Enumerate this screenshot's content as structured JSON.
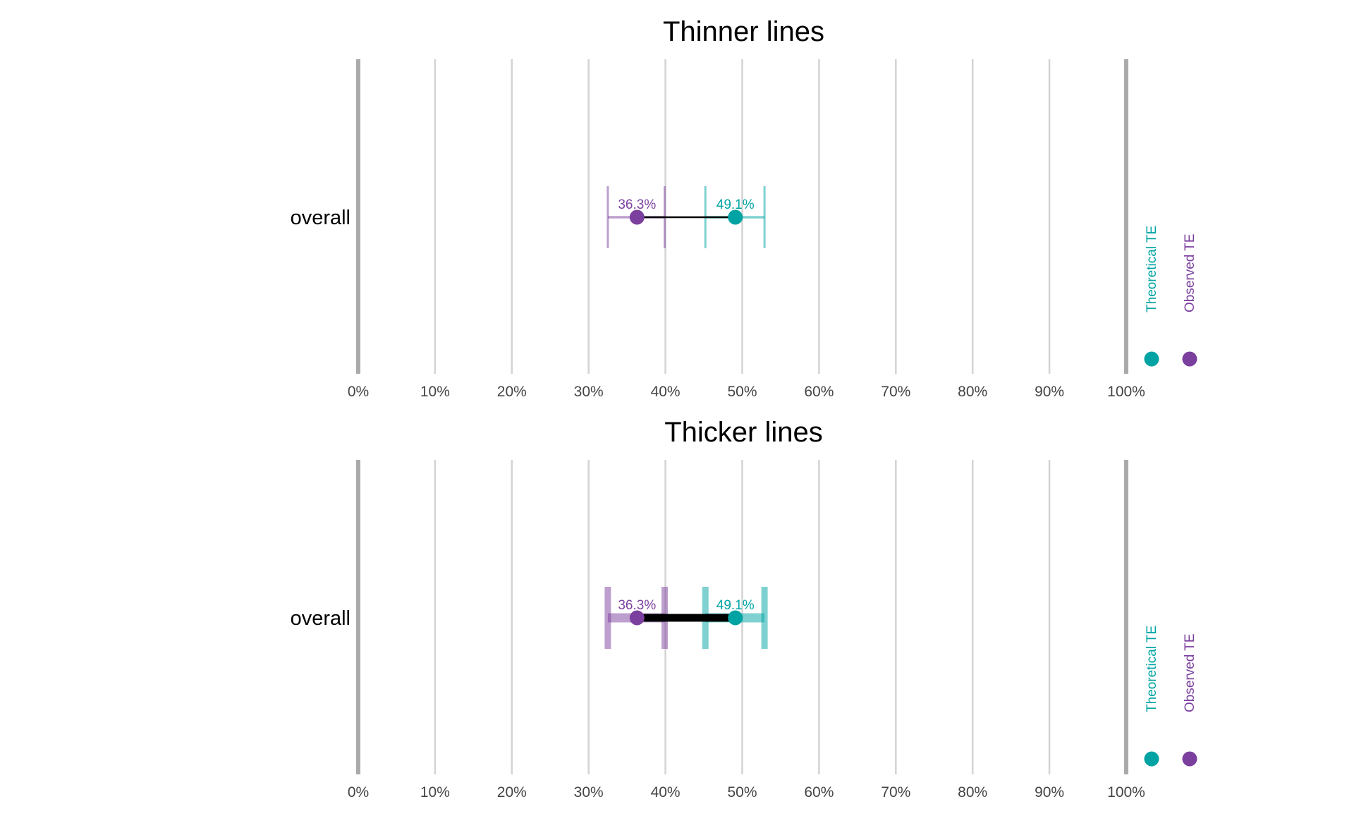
{
  "colors": {
    "theoretical": "#00A3A3",
    "observed": "#7B3F9E",
    "connector": "#000000",
    "gridline": "#d3d3d3",
    "boundary": "#aaaaaa"
  },
  "chart_data": [
    {
      "type": "dumbbell",
      "title": "Thinner lines",
      "row_label": "overall",
      "xlim": [
        0,
        100
      ],
      "x_ticks": [
        0,
        10,
        20,
        30,
        40,
        50,
        60,
        70,
        80,
        90,
        100
      ],
      "x_tick_labels": [
        "0%",
        "10%",
        "20%",
        "30%",
        "40%",
        "50%",
        "60%",
        "70%",
        "80%",
        "90%",
        "100%"
      ],
      "grid": true,
      "line_weight": "thin",
      "series": [
        {
          "name": "Observed TE",
          "value": 36.3,
          "label": "36.3%",
          "ci": [
            32.5,
            39.9
          ],
          "color_key": "observed"
        },
        {
          "name": "Theoretical TE",
          "value": 49.1,
          "label": "49.1%",
          "ci": [
            45.2,
            52.9
          ],
          "color_key": "theoretical"
        }
      ],
      "legend_position": "right"
    },
    {
      "type": "dumbbell",
      "title": "Thicker lines",
      "row_label": "overall",
      "xlim": [
        0,
        100
      ],
      "x_ticks": [
        0,
        10,
        20,
        30,
        40,
        50,
        60,
        70,
        80,
        90,
        100
      ],
      "x_tick_labels": [
        "0%",
        "10%",
        "20%",
        "30%",
        "40%",
        "50%",
        "60%",
        "70%",
        "80%",
        "90%",
        "100%"
      ],
      "grid": true,
      "line_weight": "thick",
      "series": [
        {
          "name": "Observed TE",
          "value": 36.3,
          "label": "36.3%",
          "ci": [
            32.5,
            39.9
          ],
          "color_key": "observed"
        },
        {
          "name": "Theoretical TE",
          "value": 49.1,
          "label": "49.1%",
          "ci": [
            45.2,
            52.9
          ],
          "color_key": "theoretical"
        }
      ],
      "legend_position": "right"
    }
  ],
  "legend": {
    "items": [
      {
        "label": "Theoretical TE",
        "color_key": "theoretical"
      },
      {
        "label": "Observed TE",
        "color_key": "observed"
      }
    ]
  }
}
